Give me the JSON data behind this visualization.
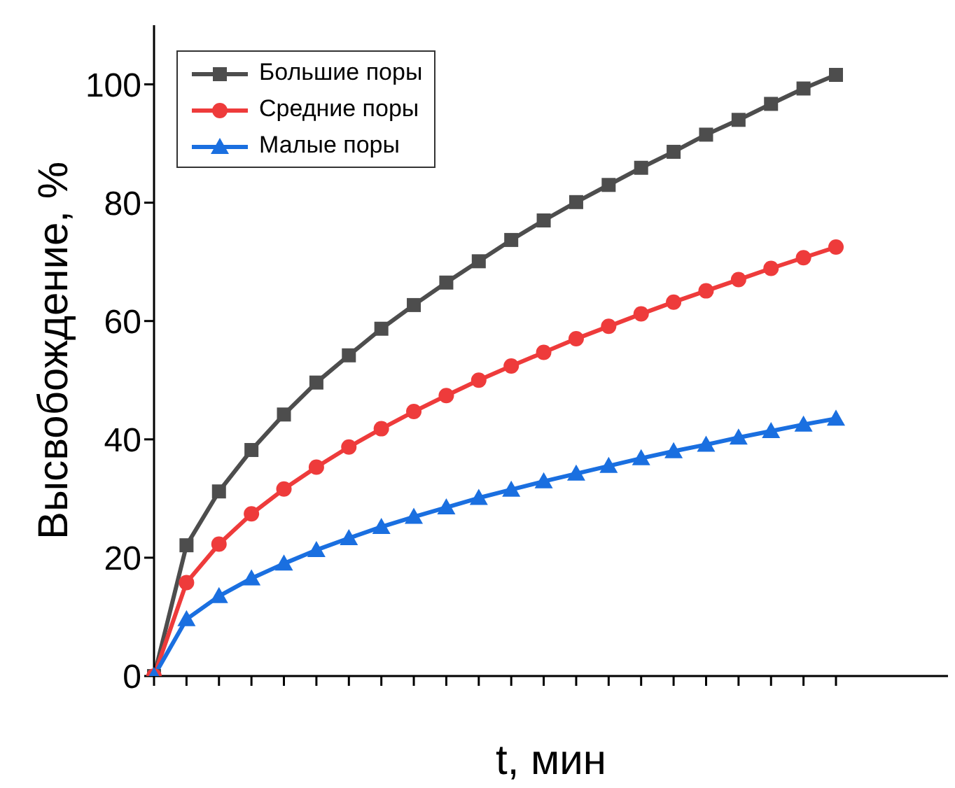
{
  "chart_data": {
    "type": "line",
    "xlabel": "t, мин",
    "ylabel": "Высвобождение, %",
    "categories": [
      null,
      null,
      null,
      null,
      null,
      null,
      null,
      null,
      null,
      null,
      null,
      null,
      null,
      null,
      null,
      null,
      null,
      null,
      null,
      null,
      null,
      null
    ],
    "series": [
      {
        "name": "Большие поры",
        "color": "#4d4d4d",
        "marker": "square",
        "values": [
          0,
          22.1,
          31.2,
          38.2,
          44.2,
          49.6,
          54.2,
          58.7,
          62.7,
          66.5,
          70.1,
          73.7,
          77.0,
          80.1,
          83.0,
          85.9,
          88.6,
          91.5,
          94.0,
          96.7,
          99.3,
          101.6
        ]
      },
      {
        "name": "Средние поры",
        "color": "#ee3b3b",
        "marker": "circle",
        "values": [
          0,
          15.8,
          22.3,
          27.4,
          31.6,
          35.3,
          38.7,
          41.8,
          44.7,
          47.4,
          50.0,
          52.4,
          54.7,
          57.0,
          59.1,
          61.2,
          63.2,
          65.1,
          67.0,
          68.9,
          70.7,
          72.5
        ]
      },
      {
        "name": "Малые поры",
        "color": "#1a6fe0",
        "marker": "triangle",
        "values": [
          0,
          9.6,
          13.5,
          16.5,
          19.0,
          21.3,
          23.3,
          25.2,
          26.9,
          28.5,
          30.1,
          31.5,
          32.9,
          34.2,
          35.5,
          36.8,
          38.0,
          39.1,
          40.3,
          41.4,
          42.5,
          43.5
        ]
      }
    ],
    "ylim": [
      0,
      110
    ],
    "yticks": [
      0,
      20,
      40,
      60,
      80,
      100
    ],
    "tick_labels": "y",
    "legend": "top left",
    "line_style": "solid"
  }
}
